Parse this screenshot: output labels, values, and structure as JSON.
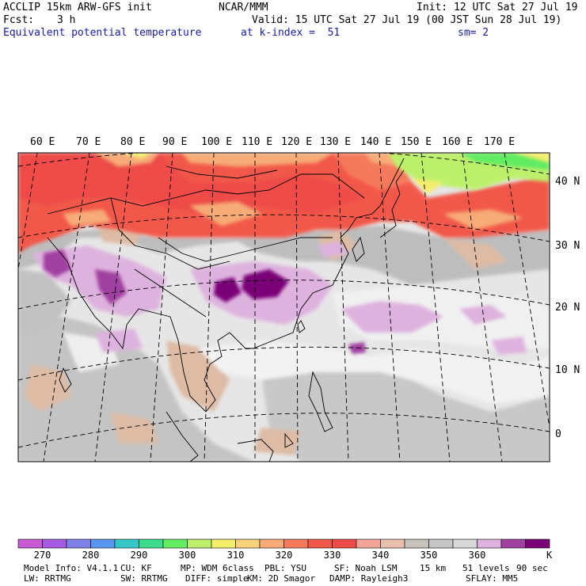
{
  "header": {
    "model": "ACCLIP 15km ARW-GFS init",
    "org": "NCAR/MMM",
    "init": "Init: 12 UTC Sat 27 Jul 19",
    "fcst_label": "Fcst:",
    "fcst_value": "3 h",
    "valid": "Valid: 15 UTC Sat 27 Jul 19 (00 JST Sun 28 Jul 19)",
    "field": "Equivalent potential temperature",
    "level": "at k-index =  51",
    "smooth": "sm= 2"
  },
  "map": {
    "lon_labels": [
      "60 E",
      "70 E",
      "80 E",
      "90 E",
      "100 E",
      "110 E",
      "120 E",
      "130 E",
      "140 E",
      "150 E",
      "160 E",
      "170 E"
    ],
    "lat_labels": [
      "40 N",
      "30 N",
      "20 N",
      "10 N",
      "0"
    ]
  },
  "colorbar": {
    "colors": [
      "#c85ad2",
      "#a65ae0",
      "#8080ea",
      "#5a96f0",
      "#36c8c8",
      "#3cdc8c",
      "#62ec62",
      "#bdf06a",
      "#f5ee6c",
      "#f7d27a",
      "#f7ac78",
      "#f57a5c",
      "#f2584a",
      "#ee4c48",
      "#f2a496",
      "#e9c0ae",
      "#c8c2bc",
      "#c6c6c6",
      "#d8d8d8",
      "#deb2de",
      "#a040a0",
      "#7a0078"
    ],
    "labels": [
      "270",
      "280",
      "290",
      "300",
      "310",
      "320",
      "330",
      "340",
      "350",
      "360"
    ],
    "unit": "K"
  },
  "footer": {
    "line1": [
      "Model Info: V4.1.1",
      "CU: KF",
      "MP: WDM 6class",
      "PBL: YSU",
      "SF: Noah LSM",
      "15 km",
      "51 levels",
      "90 sec"
    ],
    "line2": [
      "LW: RRTMG",
      "SW: RRTMG",
      "DIFF: simple",
      "KM: 2D Smagor",
      "DAMP: Rayleigh3",
      "SFLAY: MM5"
    ]
  }
}
